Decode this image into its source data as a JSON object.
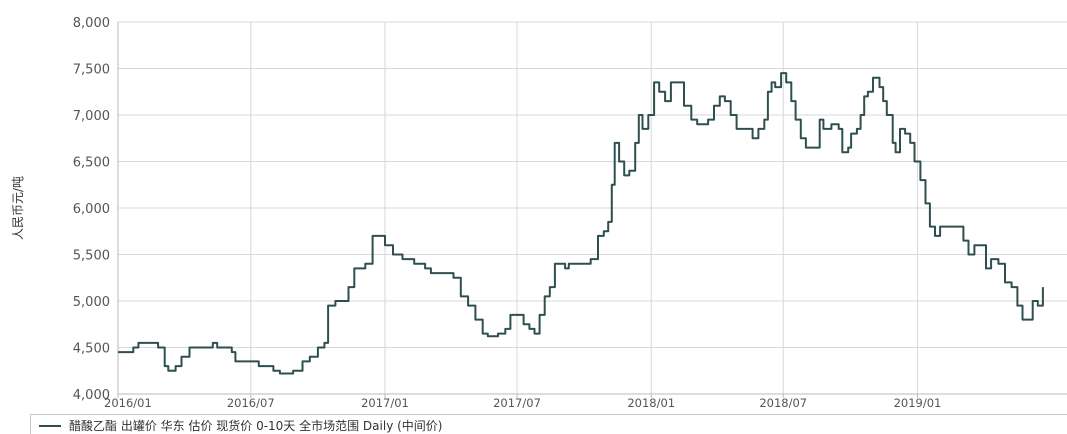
{
  "chart_data": {
    "type": "line",
    "ylabel": "人民币元/吨",
    "ylim": [
      4000,
      8000
    ],
    "yticks": [
      4000,
      4500,
      5000,
      5500,
      6000,
      6500,
      7000,
      7500,
      8000
    ],
    "ytick_labels": [
      "4,000",
      "4,500",
      "5,000",
      "5,500",
      "6,000",
      "6,500",
      "7,000",
      "7,500",
      "8,000"
    ],
    "xlim": [
      "2016-01-01",
      "2019-07-25"
    ],
    "xticks": [
      "2016-01-01",
      "2016-07-01",
      "2017-01-01",
      "2017-07-01",
      "2018-01-01",
      "2018-07-01",
      "2019-01-01"
    ],
    "xtick_labels": [
      "2016/01",
      "2016/07",
      "2017/01",
      "2017/07",
      "2018/01",
      "2018/07",
      "2019/01"
    ],
    "grid": true,
    "legend": "bottom",
    "line_color": "#2f4f4f",
    "series": [
      {
        "name": "醋酸乙酯 出罐价 华东 估价 现货价 0-10天 全市场范围 Daily (中间价)",
        "points": [
          [
            "2016-01-01",
            4450
          ],
          [
            "2016-01-15",
            4450
          ],
          [
            "2016-01-22",
            4500
          ],
          [
            "2016-01-29",
            4550
          ],
          [
            "2016-02-15",
            4550
          ],
          [
            "2016-02-25",
            4500
          ],
          [
            "2016-03-05",
            4300
          ],
          [
            "2016-03-10",
            4250
          ],
          [
            "2016-03-20",
            4300
          ],
          [
            "2016-03-28",
            4400
          ],
          [
            "2016-04-08",
            4500
          ],
          [
            "2016-05-01",
            4500
          ],
          [
            "2016-05-10",
            4550
          ],
          [
            "2016-05-16",
            4500
          ],
          [
            "2016-06-05",
            4450
          ],
          [
            "2016-06-10",
            4350
          ],
          [
            "2016-07-01",
            4350
          ],
          [
            "2016-07-12",
            4300
          ],
          [
            "2016-08-01",
            4250
          ],
          [
            "2016-08-10",
            4220
          ],
          [
            "2016-08-28",
            4250
          ],
          [
            "2016-09-10",
            4350
          ],
          [
            "2016-09-20",
            4400
          ],
          [
            "2016-10-01",
            4500
          ],
          [
            "2016-10-10",
            4550
          ],
          [
            "2016-10-15",
            4950
          ],
          [
            "2016-10-25",
            5000
          ],
          [
            "2016-11-05",
            5000
          ],
          [
            "2016-11-12",
            5150
          ],
          [
            "2016-11-20",
            5350
          ],
          [
            "2016-12-05",
            5400
          ],
          [
            "2016-12-15",
            5700
          ],
          [
            "2016-12-25",
            5700
          ],
          [
            "2017-01-01",
            5600
          ],
          [
            "2017-01-12",
            5500
          ],
          [
            "2017-01-25",
            5450
          ],
          [
            "2017-02-10",
            5400
          ],
          [
            "2017-02-25",
            5350
          ],
          [
            "2017-03-05",
            5300
          ],
          [
            "2017-03-25",
            5300
          ],
          [
            "2017-04-05",
            5250
          ],
          [
            "2017-04-15",
            5050
          ],
          [
            "2017-04-25",
            4950
          ],
          [
            "2017-05-05",
            4800
          ],
          [
            "2017-05-15",
            4650
          ],
          [
            "2017-05-22",
            4620
          ],
          [
            "2017-06-05",
            4650
          ],
          [
            "2017-06-15",
            4700
          ],
          [
            "2017-06-22",
            4850
          ],
          [
            "2017-07-01",
            4850
          ],
          [
            "2017-07-10",
            4750
          ],
          [
            "2017-07-18",
            4700
          ],
          [
            "2017-07-25",
            4650
          ],
          [
            "2017-08-01",
            4850
          ],
          [
            "2017-08-08",
            5050
          ],
          [
            "2017-08-15",
            5150
          ],
          [
            "2017-08-22",
            5400
          ],
          [
            "2017-08-29",
            5400
          ],
          [
            "2017-09-05",
            5350
          ],
          [
            "2017-09-10",
            5400
          ],
          [
            "2017-10-01",
            5400
          ],
          [
            "2017-10-10",
            5450
          ],
          [
            "2017-10-20",
            5700
          ],
          [
            "2017-10-28",
            5750
          ],
          [
            "2017-11-03",
            5850
          ],
          [
            "2017-11-08",
            6250
          ],
          [
            "2017-11-12",
            6700
          ],
          [
            "2017-11-18",
            6500
          ],
          [
            "2017-11-25",
            6350
          ],
          [
            "2017-12-02",
            6400
          ],
          [
            "2017-12-10",
            6700
          ],
          [
            "2017-12-15",
            7000
          ],
          [
            "2017-12-20",
            6850
          ],
          [
            "2017-12-28",
            7000
          ],
          [
            "2018-01-05",
            7350
          ],
          [
            "2018-01-12",
            7250
          ],
          [
            "2018-01-20",
            7150
          ],
          [
            "2018-01-28",
            7350
          ],
          [
            "2018-02-05",
            7350
          ],
          [
            "2018-02-15",
            7100
          ],
          [
            "2018-02-25",
            6950
          ],
          [
            "2018-03-05",
            6900
          ],
          [
            "2018-03-20",
            6950
          ],
          [
            "2018-03-28",
            7100
          ],
          [
            "2018-04-05",
            7200
          ],
          [
            "2018-04-12",
            7150
          ],
          [
            "2018-04-20",
            7000
          ],
          [
            "2018-04-28",
            6850
          ],
          [
            "2018-05-05",
            6850
          ],
          [
            "2018-05-20",
            6750
          ],
          [
            "2018-05-28",
            6850
          ],
          [
            "2018-06-05",
            6950
          ],
          [
            "2018-06-10",
            7250
          ],
          [
            "2018-06-15",
            7350
          ],
          [
            "2018-06-20",
            7300
          ],
          [
            "2018-06-28",
            7450
          ],
          [
            "2018-07-05",
            7350
          ],
          [
            "2018-07-12",
            7150
          ],
          [
            "2018-07-18",
            6950
          ],
          [
            "2018-07-25",
            6750
          ],
          [
            "2018-08-01",
            6650
          ],
          [
            "2018-08-15",
            6650
          ],
          [
            "2018-08-20",
            6950
          ],
          [
            "2018-08-25",
            6850
          ],
          [
            "2018-09-05",
            6900
          ],
          [
            "2018-09-15",
            6850
          ],
          [
            "2018-09-20",
            6600
          ],
          [
            "2018-09-28",
            6650
          ],
          [
            "2018-10-02",
            6800
          ],
          [
            "2018-10-10",
            6850
          ],
          [
            "2018-10-15",
            7000
          ],
          [
            "2018-10-20",
            7200
          ],
          [
            "2018-10-25",
            7250
          ],
          [
            "2018-11-01",
            7400
          ],
          [
            "2018-11-10",
            7300
          ],
          [
            "2018-11-15",
            7150
          ],
          [
            "2018-11-20",
            7000
          ],
          [
            "2018-11-28",
            6700
          ],
          [
            "2018-12-02",
            6600
          ],
          [
            "2018-12-08",
            6850
          ],
          [
            "2018-12-15",
            6800
          ],
          [
            "2018-12-22",
            6700
          ],
          [
            "2018-12-28",
            6500
          ],
          [
            "2019-01-05",
            6300
          ],
          [
            "2019-01-12",
            6050
          ],
          [
            "2019-01-18",
            5800
          ],
          [
            "2019-01-25",
            5700
          ],
          [
            "2019-02-01",
            5800
          ],
          [
            "2019-02-25",
            5800
          ],
          [
            "2019-03-05",
            5650
          ],
          [
            "2019-03-12",
            5500
          ],
          [
            "2019-03-20",
            5600
          ],
          [
            "2019-03-28",
            5600
          ],
          [
            "2019-04-05",
            5350
          ],
          [
            "2019-04-12",
            5450
          ],
          [
            "2019-04-22",
            5400
          ],
          [
            "2019-05-01",
            5200
          ],
          [
            "2019-05-10",
            5150
          ],
          [
            "2019-05-18",
            4950
          ],
          [
            "2019-05-25",
            4800
          ],
          [
            "2019-06-02",
            4800
          ],
          [
            "2019-06-08",
            5000
          ],
          [
            "2019-06-15",
            4950
          ],
          [
            "2019-06-22",
            5150
          ]
        ]
      }
    ]
  }
}
